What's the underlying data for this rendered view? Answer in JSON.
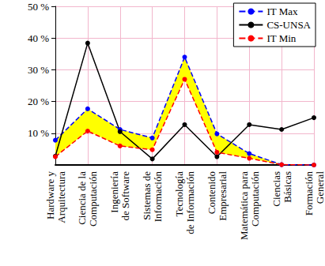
{
  "chart_data": {
    "type": "line",
    "categories": [
      "Hardware y\nArquitectura",
      "Ciencia de la\nComputación",
      "Ingeniería\nde Software",
      "Sistemas de\nInformación",
      "Tecnología\nde Información",
      "Contenido\nEmpresarial",
      "Matemática para\nComputación",
      "Ciencias\nBásicas",
      "Formación\nGeneral"
    ],
    "series": [
      {
        "name": "IT Max",
        "color": "#0000ff",
        "line_style": "dashed",
        "marker": "circle",
        "values": [
          7.8,
          17.7,
          11.2,
          8.5,
          34,
          9.8,
          3.6,
          0.1,
          0
        ]
      },
      {
        "name": "CS-UNSA",
        "color": "#000000",
        "line_style": "solid",
        "marker": "circle",
        "values": [
          2.8,
          38.4,
          10.5,
          1.9,
          12.7,
          2.6,
          12.7,
          11.2,
          14.9
        ]
      },
      {
        "name": "IT Min",
        "color": "#ff0000",
        "line_style": "dashed",
        "marker": "circle",
        "values": [
          2.6,
          10.7,
          6,
          4.8,
          27,
          4,
          2.1,
          0.1,
          0
        ]
      }
    ],
    "ylim": [
      0,
      50
    ],
    "yticks": [
      {
        "value": 10,
        "label": "10 %"
      },
      {
        "value": 20,
        "label": "20 %"
      },
      {
        "value": 30,
        "label": "30 %"
      },
      {
        "value": 40,
        "label": "40 %"
      },
      {
        "value": 50,
        "label": "50 %"
      }
    ],
    "grid": true,
    "legend": "upper right"
  }
}
